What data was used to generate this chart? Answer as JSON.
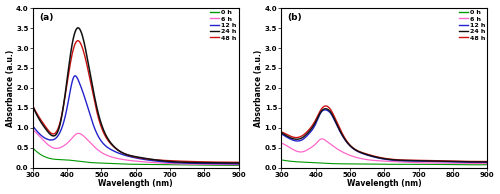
{
  "panel_a": {
    "label": "(a)",
    "curves_order": [
      "0h",
      "6h",
      "12h",
      "48h",
      "24h"
    ],
    "curves": {
      "0h": {
        "color": "#009900",
        "lw": 0.8,
        "pts_wl": [
          300,
          330,
          360,
          400,
          420,
          430,
          440,
          460,
          500,
          550,
          600,
          700,
          800,
          900
        ],
        "pts_y": [
          0.5,
          0.3,
          0.22,
          0.2,
          0.18,
          0.17,
          0.16,
          0.14,
          0.12,
          0.1,
          0.09,
          0.08,
          0.07,
          0.06
        ]
      },
      "6h": {
        "color": "#ff66cc",
        "lw": 0.9,
        "pts_wl": [
          300,
          330,
          360,
          390,
          410,
          430,
          445,
          460,
          490,
          540,
          600,
          700,
          800,
          900
        ],
        "pts_y": [
          0.95,
          0.7,
          0.5,
          0.55,
          0.7,
          0.86,
          0.82,
          0.7,
          0.45,
          0.25,
          0.17,
          0.11,
          0.09,
          0.08
        ]
      },
      "12h": {
        "color": "#2222cc",
        "lw": 1.0,
        "pts_wl": [
          300,
          320,
          350,
          380,
          400,
          420,
          435,
          450,
          480,
          530,
          600,
          700,
          800,
          900
        ],
        "pts_y": [
          1.05,
          0.85,
          0.7,
          0.9,
          1.5,
          2.28,
          2.15,
          1.8,
          1.0,
          0.45,
          0.25,
          0.14,
          0.11,
          0.1
        ]
      },
      "24h": {
        "color": "#111111",
        "lw": 1.1,
        "pts_wl": [
          300,
          320,
          340,
          360,
          380,
          400,
          415,
          430,
          445,
          460,
          490,
          530,
          600,
          700,
          800,
          900
        ],
        "pts_y": [
          1.55,
          1.2,
          0.95,
          0.8,
          1.1,
          2.2,
          3.1,
          3.5,
          3.3,
          2.7,
          1.4,
          0.6,
          0.28,
          0.16,
          0.13,
          0.12
        ]
      },
      "48h": {
        "color": "#cc1111",
        "lw": 1.0,
        "pts_wl": [
          300,
          320,
          340,
          360,
          380,
          400,
          415,
          430,
          445,
          460,
          490,
          530,
          600,
          700,
          800,
          900
        ],
        "pts_y": [
          1.55,
          1.25,
          1.0,
          0.85,
          1.15,
          2.1,
          2.85,
          3.18,
          3.0,
          2.5,
          1.3,
          0.58,
          0.27,
          0.18,
          0.15,
          0.14
        ]
      }
    },
    "xlim": [
      300,
      900
    ],
    "ylim": [
      0,
      4.0
    ],
    "yticks": [
      0.0,
      0.5,
      1.0,
      1.5,
      2.0,
      2.5,
      3.0,
      3.5,
      4.0
    ]
  },
  "panel_b": {
    "label": "(b)",
    "curves_order": [
      "0h",
      "6h",
      "12h",
      "48h",
      "24h"
    ],
    "curves": {
      "0h": {
        "color": "#009900",
        "lw": 0.8,
        "pts_wl": [
          300,
          350,
          400,
          420,
          440,
          500,
          600,
          700,
          800,
          900
        ],
        "pts_y": [
          0.2,
          0.15,
          0.13,
          0.12,
          0.11,
          0.1,
          0.09,
          0.09,
          0.08,
          0.08
        ]
      },
      "6h": {
        "color": "#ff66cc",
        "lw": 0.9,
        "pts_wl": [
          300,
          330,
          360,
          385,
          400,
          415,
          430,
          450,
          490,
          540,
          600,
          700,
          800,
          900
        ],
        "pts_y": [
          0.62,
          0.48,
          0.4,
          0.5,
          0.6,
          0.72,
          0.68,
          0.55,
          0.35,
          0.22,
          0.17,
          0.13,
          0.12,
          0.11
        ]
      },
      "12h": {
        "color": "#2222cc",
        "lw": 1.0,
        "pts_wl": [
          300,
          320,
          340,
          360,
          380,
          400,
          415,
          430,
          445,
          460,
          490,
          540,
          600,
          700,
          800,
          900
        ],
        "pts_y": [
          0.85,
          0.75,
          0.68,
          0.7,
          0.85,
          1.1,
          1.38,
          1.45,
          1.35,
          1.1,
          0.65,
          0.35,
          0.22,
          0.17,
          0.15,
          0.14
        ]
      },
      "24h": {
        "color": "#111111",
        "lw": 1.0,
        "pts_wl": [
          300,
          320,
          340,
          360,
          380,
          400,
          415,
          430,
          445,
          460,
          490,
          540,
          600,
          700,
          800,
          900
        ],
        "pts_y": [
          0.88,
          0.78,
          0.72,
          0.75,
          0.9,
          1.15,
          1.4,
          1.48,
          1.38,
          1.12,
          0.66,
          0.36,
          0.23,
          0.18,
          0.16,
          0.15
        ]
      },
      "48h": {
        "color": "#cc1111",
        "lw": 1.0,
        "pts_wl": [
          300,
          320,
          340,
          360,
          380,
          400,
          415,
          430,
          445,
          460,
          490,
          540,
          600,
          700,
          800,
          900
        ],
        "pts_y": [
          0.9,
          0.82,
          0.76,
          0.8,
          0.95,
          1.2,
          1.45,
          1.55,
          1.44,
          1.18,
          0.68,
          0.37,
          0.24,
          0.19,
          0.17,
          0.16
        ]
      }
    },
    "xlim": [
      300,
      900
    ],
    "ylim": [
      0,
      4.0
    ],
    "yticks": [
      0.0,
      0.5,
      1.0,
      1.5,
      2.0,
      2.5,
      3.0,
      3.5,
      4.0
    ]
  },
  "legend_labels": [
    "0 h",
    "6 h",
    "12 h",
    "24 h",
    "48 h"
  ],
  "legend_colors": [
    "#009900",
    "#ff66cc",
    "#2222cc",
    "#111111",
    "#cc1111"
  ],
  "xlabel": "Wavelength (nm)",
  "ylabel": "Absorbance (a.u.)",
  "xticks": [
    300,
    400,
    500,
    600,
    700,
    800,
    900
  ]
}
